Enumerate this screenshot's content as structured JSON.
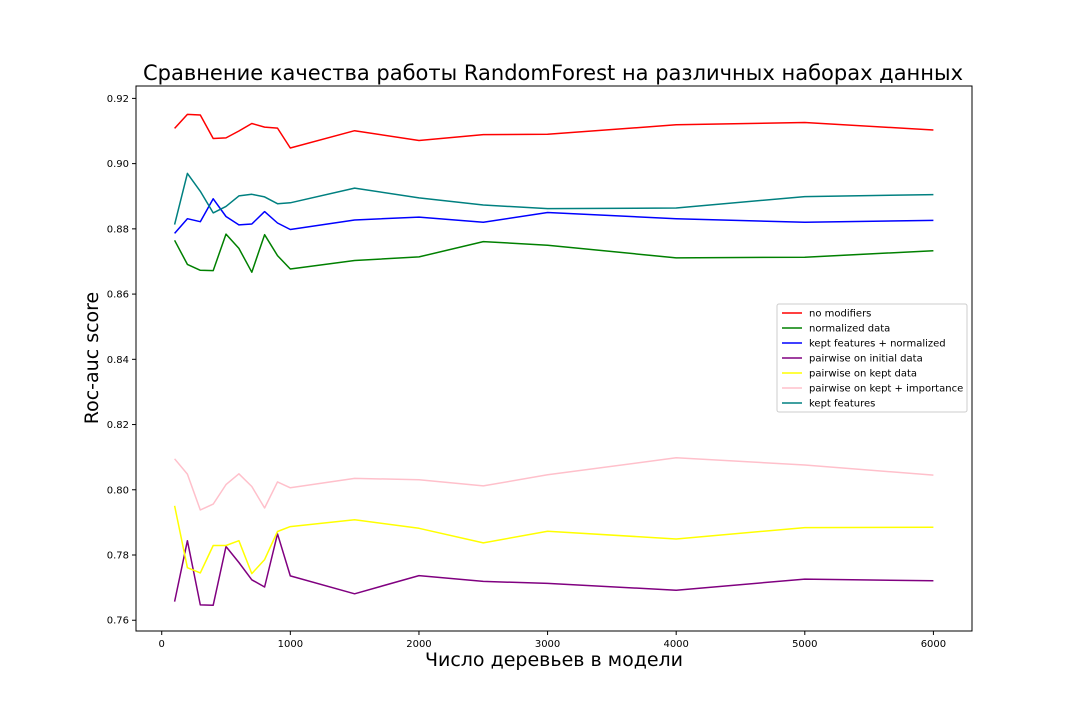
{
  "chart_data": {
    "type": "line",
    "title": "Сравнение качества работы RandomForest на различных наборах данных",
    "xlabel": "Число деревьев в модели",
    "ylabel": "Roc-auc score",
    "xlim": [
      -200,
      6300
    ],
    "ylim": [
      0.7567,
      0.9238
    ],
    "xticks": [
      0,
      1000,
      2000,
      3000,
      4000,
      5000,
      6000
    ],
    "xtick_labels": [
      "0",
      "1000",
      "2000",
      "3000",
      "4000",
      "5000",
      "6000"
    ],
    "yticks": [
      0.76,
      0.78,
      0.8,
      0.82,
      0.84,
      0.86,
      0.88,
      0.9,
      0.92
    ],
    "ytick_labels": [
      "0.76",
      "0.78",
      "0.80",
      "0.82",
      "0.84",
      "0.86",
      "0.88",
      "0.90",
      "0.92"
    ],
    "grid": false,
    "legend_position": "center-right",
    "x": [
      100,
      200,
      300,
      400,
      500,
      600,
      700,
      800,
      900,
      1000,
      1500,
      2000,
      2500,
      3000,
      4000,
      5000,
      6000
    ],
    "series": [
      {
        "name": "no modifiers",
        "color": "#ff0000",
        "values": [
          0.9108,
          0.9151,
          0.9149,
          0.9077,
          0.9079,
          0.91,
          0.9123,
          0.9112,
          0.9109,
          0.9048,
          0.9101,
          0.9071,
          0.9089,
          0.909,
          0.9119,
          0.9126,
          0.9103
        ]
      },
      {
        "name": "normalized data",
        "color": "#008000",
        "values": [
          0.8765,
          0.8691,
          0.8673,
          0.8672,
          0.8784,
          0.874,
          0.8667,
          0.8782,
          0.8718,
          0.8677,
          0.8703,
          0.8714,
          0.8761,
          0.875,
          0.8711,
          0.8713,
          0.8733
        ]
      },
      {
        "name": "kept features + normalized",
        "color": "#0000ff",
        "values": [
          0.8786,
          0.8831,
          0.8822,
          0.8892,
          0.8838,
          0.8812,
          0.8815,
          0.8853,
          0.8818,
          0.8798,
          0.8827,
          0.8836,
          0.882,
          0.885,
          0.8831,
          0.882,
          0.8826
        ]
      },
      {
        "name": "pairwise on initial data",
        "color": "#800080",
        "values": [
          0.7657,
          0.7844,
          0.7647,
          0.7646,
          0.7826,
          0.7777,
          0.7724,
          0.7702,
          0.7865,
          0.7736,
          0.7681,
          0.7737,
          0.7719,
          0.7713,
          0.7692,
          0.7726,
          0.7721
        ]
      },
      {
        "name": "pairwise on kept data",
        "color": "#ffff00",
        "values": [
          0.7951,
          0.7761,
          0.7745,
          0.7829,
          0.7829,
          0.7844,
          0.7743,
          0.7786,
          0.7872,
          0.7887,
          0.7908,
          0.7882,
          0.7837,
          0.7873,
          0.7849,
          0.7884,
          0.7885
        ]
      },
      {
        "name": "pairwise on kept + importance",
        "color": "#ffc0cb",
        "values": [
          0.8095,
          0.8048,
          0.7938,
          0.7956,
          0.8016,
          0.8049,
          0.801,
          0.7944,
          0.8024,
          0.8006,
          0.8035,
          0.8031,
          0.8012,
          0.8046,
          0.8098,
          0.8076,
          0.8045
        ]
      },
      {
        "name": "kept features",
        "color": "#008080",
        "values": [
          0.8813,
          0.897,
          0.8915,
          0.8849,
          0.8869,
          0.8901,
          0.8906,
          0.8898,
          0.8877,
          0.888,
          0.8925,
          0.8895,
          0.8873,
          0.8862,
          0.8864,
          0.8899,
          0.8905
        ]
      }
    ]
  }
}
